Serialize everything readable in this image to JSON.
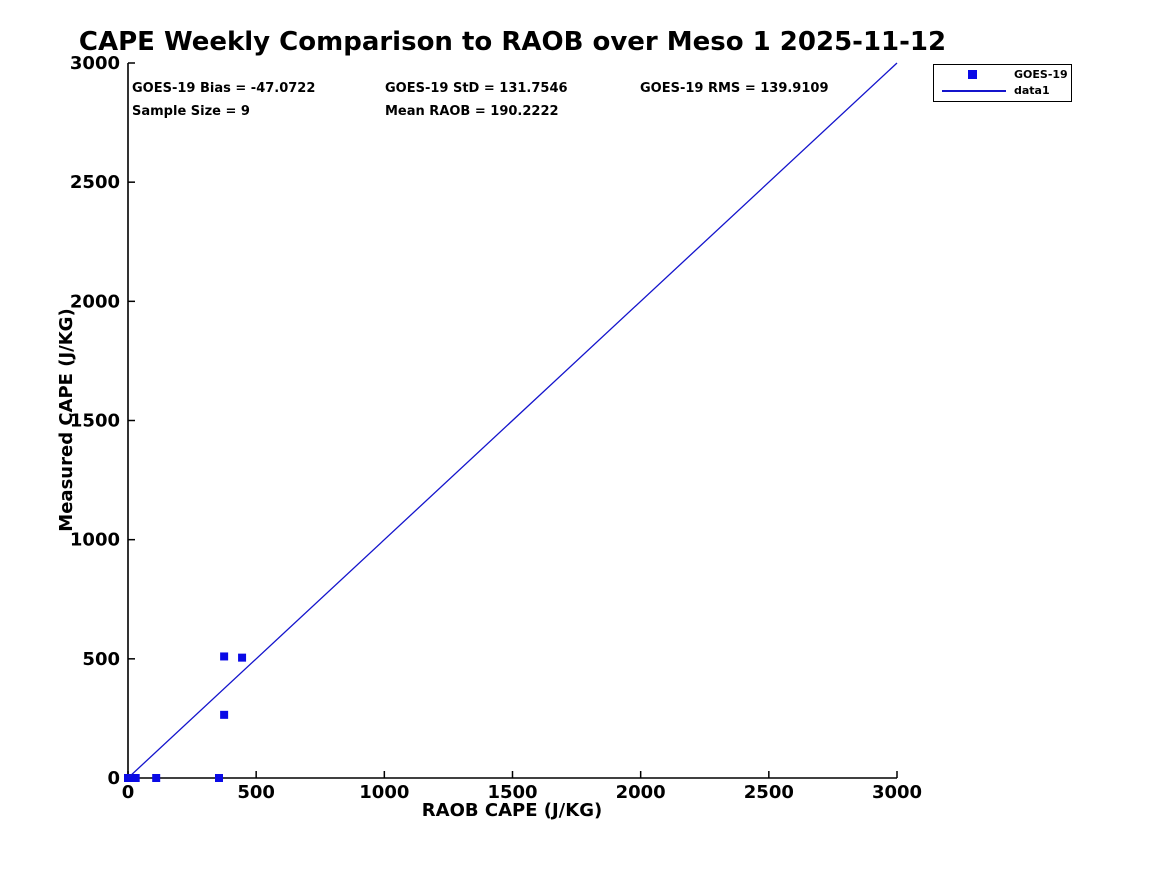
{
  "stats": {
    "bias": "GOES-19 Bias = -47.0722",
    "std": "GOES-19 StD = 131.7546",
    "rms": "GOES-19 RMS = 139.9109",
    "sample_size": "Sample Size = 9",
    "mean_raob": "Mean RAOB = 190.2222"
  },
  "chart_data": {
    "type": "scatter",
    "title": "CAPE Weekly Comparison to RAOB over Meso 1 2025-11-12",
    "xlabel": "RAOB CAPE (J/KG)",
    "ylabel": "Measured CAPE (J/KG)",
    "xlim": [
      0,
      3000
    ],
    "ylim": [
      0,
      3000
    ],
    "x_ticks": [
      0,
      500,
      1000,
      1500,
      2000,
      2500,
      3000
    ],
    "y_ticks": [
      0,
      500,
      1000,
      1500,
      2000,
      2500,
      3000
    ],
    "grid": false,
    "axis_color": "#000000",
    "legend": {
      "position": "top-right-outside",
      "entries": [
        {
          "label": "GOES-19",
          "glyph": "square-marker",
          "color": "#0a0ae6"
        },
        {
          "label": "data1",
          "glyph": "line",
          "color": "#1414cc"
        }
      ]
    },
    "series": [
      {
        "name": "GOES-19",
        "type": "scatter",
        "marker": "filled-square",
        "color": "#0a0ae6",
        "points": [
          [
            0,
            0
          ],
          [
            2,
            0
          ],
          [
            23,
            0
          ],
          [
            30,
            0
          ],
          [
            110,
            0
          ],
          [
            355,
            0
          ],
          [
            375,
            265
          ],
          [
            375,
            510
          ],
          [
            445,
            505
          ]
        ]
      },
      {
        "name": "data1",
        "type": "line",
        "color": "#1414cc",
        "points": [
          [
            0,
            0
          ],
          [
            3000,
            3000
          ]
        ]
      }
    ],
    "annotations": [
      "GOES-19 Bias = -47.0722",
      "GOES-19 StD = 131.7546",
      "GOES-19 RMS = 139.9109",
      "Sample Size = 9",
      "Mean RAOB = 190.2222"
    ]
  }
}
